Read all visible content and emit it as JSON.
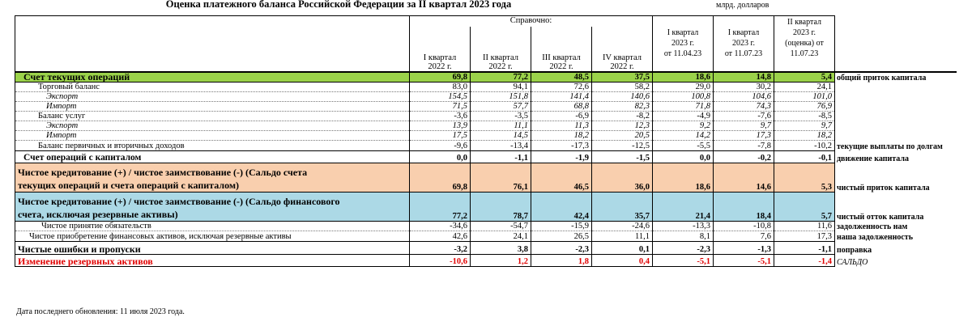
{
  "title": "Оценка платежного баланса Российской Федерации за II квартал 2023 года",
  "unit": "млрд. долларов",
  "header": {
    "reference_label": "Справочно:",
    "columns": [
      [
        "I квартал",
        "2022 г."
      ],
      [
        "II квартал",
        "2022 г."
      ],
      [
        "III квартал",
        "2022 г."
      ],
      [
        "IV квартал",
        "2022 г."
      ],
      [
        "I квартал",
        "2023 г.",
        "от 11.04.23"
      ],
      [
        "I квартал",
        "2023 г.",
        "от 11.07.23"
      ],
      [
        "II квартал",
        "2023 г.",
        "(оценка) от",
        "11.07.23"
      ]
    ]
  },
  "rows": [
    {
      "label": "Счет текущих операций",
      "values": [
        "69,8",
        "77,2",
        "48,5",
        "37,5",
        "18,6",
        "14,8",
        "5,4"
      ],
      "note": "общий приток капитала"
    },
    {
      "label": "Торговый баланс",
      "values": [
        "83,0",
        "94,1",
        "72,6",
        "58,2",
        "29,0",
        "30,2",
        "24,1"
      ],
      "note": ""
    },
    {
      "label": "Экспорт",
      "values": [
        "154,5",
        "151,8",
        "141,4",
        "140,6",
        "100,8",
        "104,6",
        "101,0"
      ],
      "note": ""
    },
    {
      "label": "Импорт",
      "values": [
        "71,5",
        "57,7",
        "68,8",
        "82,3",
        "71,8",
        "74,3",
        "76,9"
      ],
      "note": ""
    },
    {
      "label": "Баланс услуг",
      "values": [
        "-3,6",
        "-3,5",
        "-6,9",
        "-8,2",
        "-4,9",
        "-7,6",
        "-8,5"
      ],
      "note": ""
    },
    {
      "label": "Экспорт",
      "values": [
        "13,9",
        "11,1",
        "11,3",
        "12,3",
        "9,2",
        "9,7",
        "9,7"
      ],
      "note": ""
    },
    {
      "label": "Импорт",
      "values": [
        "17,5",
        "14,5",
        "18,2",
        "20,5",
        "14,2",
        "17,3",
        "18,2"
      ],
      "note": ""
    },
    {
      "label": "Баланс первичных и вторичных доходов",
      "values": [
        "-9,6",
        "-13,4",
        "-17,3",
        "-12,5",
        "-5,5",
        "-7,8",
        "-10,2"
      ],
      "note": "текущие выплаты по долгам"
    },
    {
      "label": "Счет операций с капиталом",
      "values": [
        "0,0",
        "-1,1",
        "-1,9",
        "-1,5",
        "0,0",
        "-0,2",
        "-0,1"
      ],
      "note": "движение капитала"
    },
    {
      "label": [
        "Чистое кредитование (+) / чистое заимствование (-) (Сальдо счета",
        "текущих операций и счета операций с капиталом)"
      ],
      "values": [
        "69,8",
        "76,1",
        "46,5",
        "36,0",
        "18,6",
        "14,6",
        "5,3"
      ],
      "note": "чистый приток капитала"
    },
    {
      "label": [
        "Чистое кредитование (+) / чистое заимствование (-) (Сальдо финансового",
        "счета, исключая резервные активы)"
      ],
      "values": [
        "77,2",
        "78,7",
        "42,4",
        "35,7",
        "21,4",
        "18,4",
        "5,7"
      ],
      "note": "чистый отток капитала"
    },
    {
      "label": "Чистое принятие обязательств",
      "values": [
        "-34,6",
        "-54,7",
        "-15,9",
        "-24,6",
        "-13,3",
        "-10,8",
        "11,6"
      ],
      "note": "задолженность нам"
    },
    {
      "label": "Чистое приобретение финансовых активов, исключая резервные активы",
      "values": [
        "42,6",
        "24,1",
        "26,5",
        "11,1",
        "8,1",
        "7,6",
        "17,3"
      ],
      "note": "наша задолженность"
    },
    {
      "label": "Чистые ошибки и пропуски",
      "values": [
        "-3,2",
        "3,8",
        "-2,3",
        "0,1",
        "-2,3",
        "-1,3",
        "-1,1"
      ],
      "note": "поправка"
    },
    {
      "label": "Изменение резервных активов",
      "values": [
        "-10,6",
        "1,2",
        "1,8",
        "0,4",
        "-5,1",
        "-5,1",
        "-1,4"
      ],
      "note": "САЛЬДО"
    }
  ],
  "footer": "Дата последнего обновления: 11 июля 2023 года.",
  "colors": {
    "green": "#9bd24a",
    "peach": "#f9cfae",
    "blue": "#acd9e6",
    "red": "#e00000"
  }
}
